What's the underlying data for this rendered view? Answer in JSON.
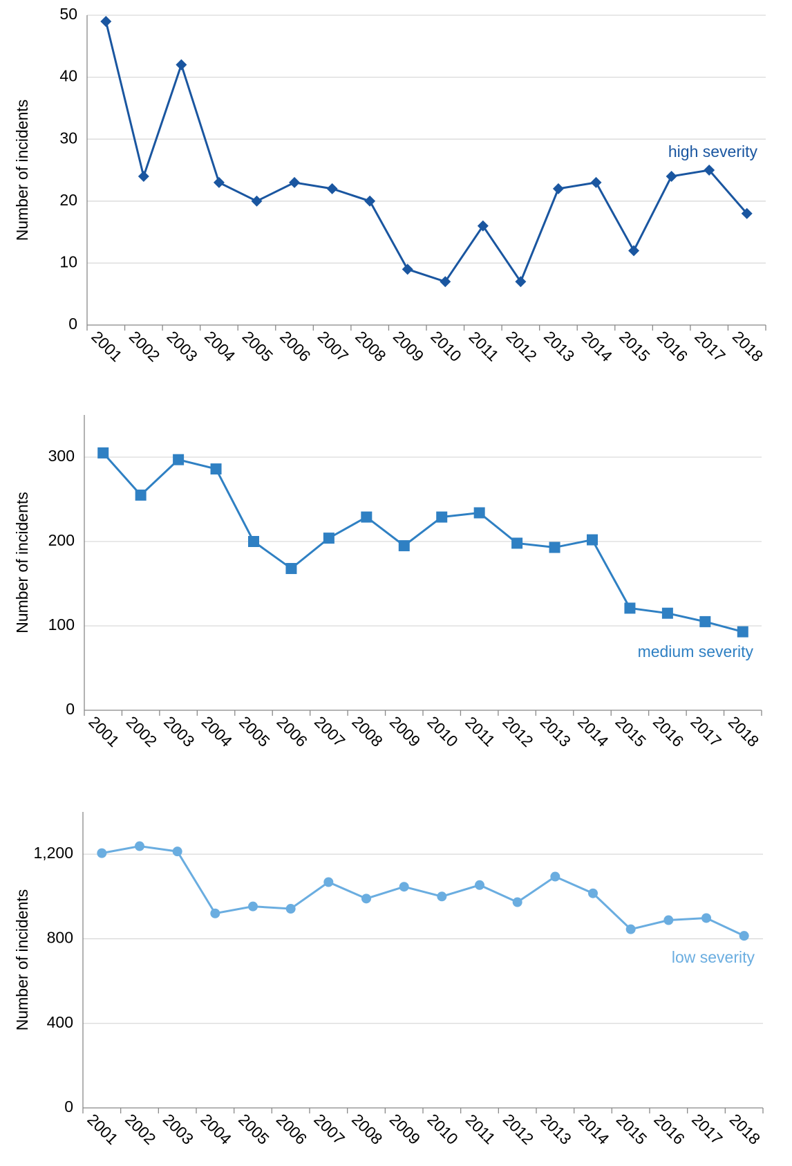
{
  "chart_data": [
    {
      "type": "line",
      "y_label": "Number of incidents",
      "categories": [
        "2001",
        "2002",
        "2003",
        "2004",
        "2005",
        "2006",
        "2007",
        "2008",
        "2009",
        "2010",
        "2011",
        "2012",
        "2013",
        "2014",
        "2015",
        "2016",
        "2017",
        "2018"
      ],
      "series": [
        {
          "name": "high severity",
          "color": "#1a56a0",
          "marker": "diamond",
          "values": [
            49,
            24,
            42,
            23,
            20,
            23,
            22,
            20,
            9,
            7,
            16,
            7,
            22,
            23,
            12,
            24,
            25,
            18
          ]
        }
      ],
      "ylim": [
        0,
        50
      ],
      "yticks": [
        0,
        10,
        20,
        30,
        40,
        50
      ],
      "grid": true
    },
    {
      "type": "line",
      "y_label": "Number of incidents",
      "categories": [
        "2001",
        "2002",
        "2003",
        "2004",
        "2005",
        "2006",
        "2007",
        "2008",
        "2009",
        "2010",
        "2011",
        "2012",
        "2013",
        "2014",
        "2015",
        "2016",
        "2017",
        "2018"
      ],
      "series": [
        {
          "name": "medium severity",
          "color": "#2f80c3",
          "marker": "square",
          "values": [
            305,
            255,
            297,
            286,
            200,
            168,
            204,
            229,
            195,
            229,
            234,
            198,
            193,
            202,
            121,
            115,
            105,
            93
          ]
        }
      ],
      "ylim": [
        0,
        350
      ],
      "yticks": [
        0,
        100,
        200,
        300
      ],
      "grid": true
    },
    {
      "type": "line",
      "y_label": "Number of incidents",
      "categories": [
        "2001",
        "2002",
        "2003",
        "2004",
        "2005",
        "2006",
        "2007",
        "2008",
        "2009",
        "2010",
        "2011",
        "2012",
        "2013",
        "2014",
        "2015",
        "2016",
        "2017",
        "2018"
      ],
      "series": [
        {
          "name": "low severity",
          "color": "#6aade0",
          "marker": "circle",
          "values": [
            1205,
            1238,
            1213,
            920,
            953,
            942,
            1068,
            990,
            1046,
            1000,
            1054,
            973,
            1094,
            1015,
            845,
            888,
            898,
            814
          ]
        }
      ],
      "ylim": [
        0,
        1400
      ],
      "yticks": [
        0,
        400,
        800,
        {
          "value": 1200,
          "label": "1,200"
        }
      ],
      "grid": true
    }
  ]
}
